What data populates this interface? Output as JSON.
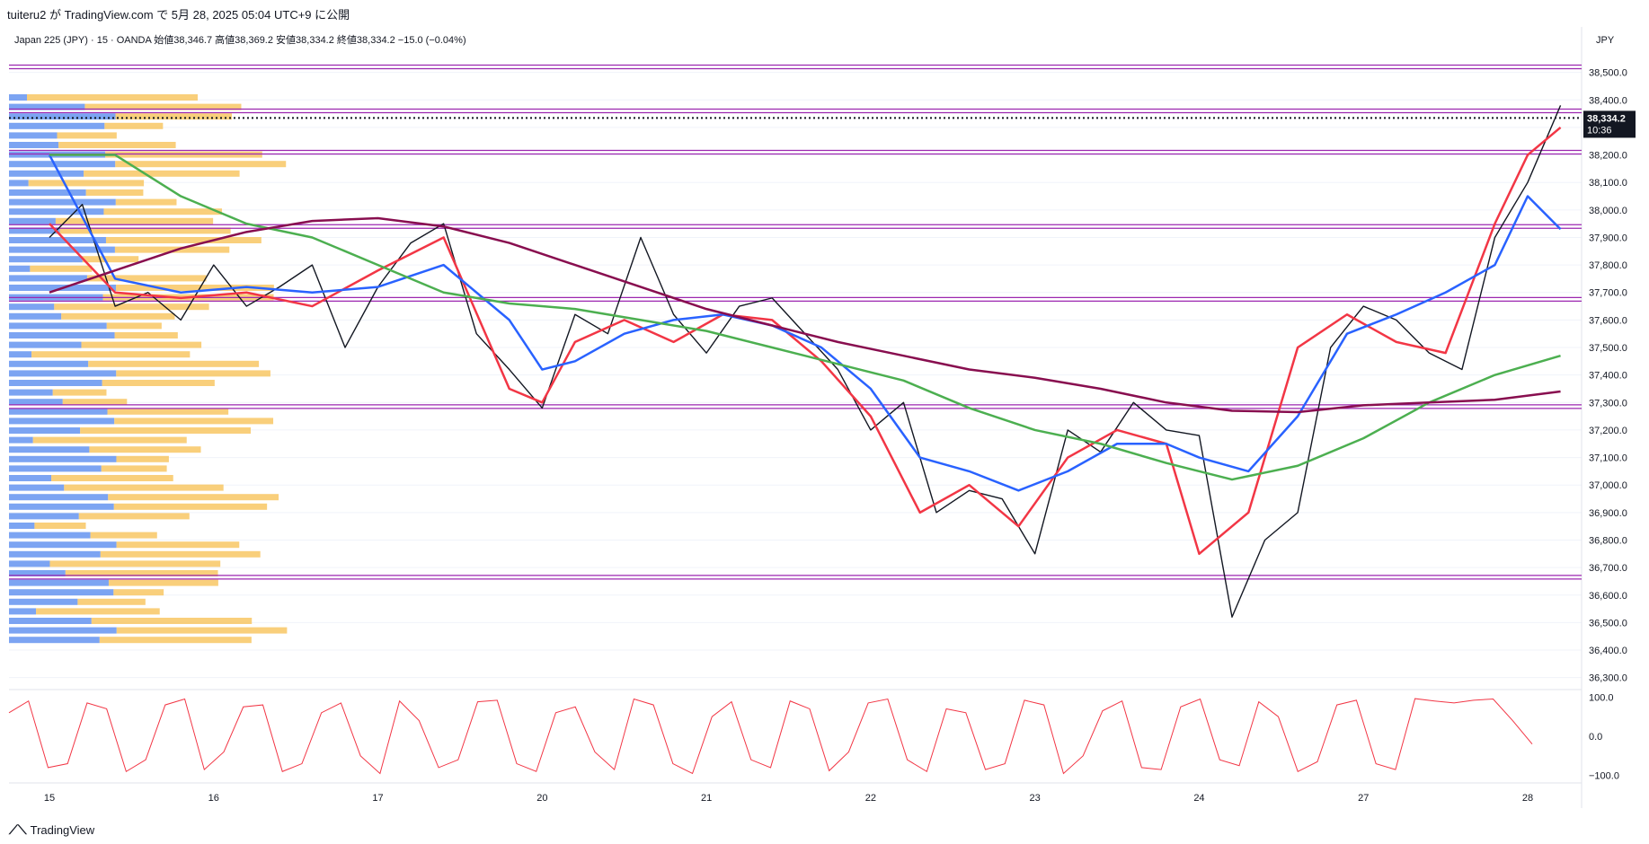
{
  "header": {
    "publish_line": "tuiteru2 が TradingView.com で 5月 28, 2025 05:04 UTC+9 に公開"
  },
  "symbol": {
    "line": "Japan 225 (JPY) · 15 · OANDA  始値38,346.7  高値38,369.2  安値38,334.2  終値38,334.2  −15.0 (−0.04%)"
  },
  "footer": {
    "brand": "TradingView",
    "logo_icon": "tradingview-logo-icon"
  },
  "chart_data": [
    {
      "type": "line",
      "title": "",
      "currency_label": "JPY",
      "y_axis": {
        "min": 36250,
        "max": 38600,
        "ticks": [
          "38,500.0",
          "38,400.0",
          "38,300.0",
          "38,200.0",
          "38,100.0",
          "38,000.0",
          "37,900.0",
          "37,800.0",
          "37,700.0",
          "37,600.0",
          "37,500.0",
          "37,400.0",
          "37,300.0",
          "37,200.0",
          "37,100.0",
          "37,000.0",
          "36,900.0",
          "36,800.0",
          "36,700.0",
          "36,600.0",
          "36,500.0",
          "36,400.0",
          "36,300.0"
        ],
        "tick_values": [
          38500,
          38400,
          38300,
          38200,
          38100,
          38000,
          37900,
          37800,
          37700,
          37600,
          37500,
          37400,
          37300,
          37200,
          37100,
          37000,
          36900,
          36800,
          36700,
          36600,
          36500,
          36400,
          36300
        ]
      },
      "x_axis": {
        "labels": [
          "15",
          "16",
          "17",
          "20",
          "21",
          "22",
          "23",
          "24",
          "27",
          "28"
        ],
        "positions": [
          0,
          1,
          2,
          3,
          4,
          5,
          6,
          7,
          8,
          9
        ]
      },
      "last_price": {
        "label": "38,334.2",
        "countdown": "10:36",
        "value": 38334.2
      },
      "horizontal_levels": [
        38520,
        38360,
        38210,
        37940,
        37675,
        37285,
        36665
      ],
      "series": [
        {
          "color": "#131722",
          "x": [
            0,
            0.2,
            0.4,
            0.6,
            0.8,
            1.0,
            1.2,
            1.4,
            1.6,
            1.8,
            2.0,
            2.2,
            2.4,
            2.6,
            2.8,
            3.0,
            3.2,
            3.4,
            3.6,
            3.8,
            4.0,
            4.2,
            4.4,
            4.6,
            4.8,
            5.0,
            5.2,
            5.4,
            5.6,
            5.8,
            6.0,
            6.2,
            6.4,
            6.6,
            6.8,
            7.0,
            7.2,
            7.4,
            7.6,
            7.8,
            8.0,
            8.2,
            8.4,
            8.6,
            8.8,
            9.0,
            9.2
          ],
          "values": [
            37900,
            38020,
            37650,
            37700,
            37600,
            37800,
            37650,
            37720,
            37800,
            37500,
            37720,
            37880,
            37950,
            37550,
            37420,
            37280,
            37620,
            37550,
            37900,
            37620,
            37480,
            37650,
            37680,
            37550,
            37420,
            37200,
            37300,
            36900,
            36980,
            36950,
            36750,
            37200,
            37120,
            37300,
            37200,
            37180,
            36520,
            36800,
            36900,
            37500,
            37650,
            37600,
            37480,
            37420,
            37900,
            38100,
            38380
          ]
        },
        {
          "color": "#f23645",
          "x": [
            0,
            0.4,
            0.8,
            1.2,
            1.6,
            2.0,
            2.4,
            2.8,
            3.0,
            3.2,
            3.5,
            3.8,
            4.1,
            4.4,
            4.7,
            5.0,
            5.3,
            5.6,
            5.9,
            6.2,
            6.5,
            6.8,
            7.0,
            7.3,
            7.6,
            7.9,
            8.2,
            8.5,
            8.8,
            9.0,
            9.2
          ],
          "values": [
            37950,
            37700,
            37680,
            37700,
            37650,
            37780,
            37900,
            37350,
            37300,
            37520,
            37600,
            37520,
            37620,
            37600,
            37450,
            37250,
            36900,
            37000,
            36850,
            37100,
            37200,
            37150,
            36750,
            36900,
            37500,
            37620,
            37520,
            37480,
            37950,
            38200,
            38300
          ]
        },
        {
          "color": "#2962ff",
          "x": [
            0,
            0.4,
            0.8,
            1.2,
            1.6,
            2.0,
            2.4,
            2.8,
            3.0,
            3.2,
            3.5,
            3.8,
            4.1,
            4.4,
            4.7,
            5.0,
            5.3,
            5.6,
            5.9,
            6.2,
            6.5,
            6.8,
            7.0,
            7.3,
            7.6,
            7.9,
            8.2,
            8.5,
            8.8,
            9.0,
            9.2
          ],
          "values": [
            38200,
            37750,
            37700,
            37720,
            37700,
            37720,
            37800,
            37600,
            37420,
            37450,
            37550,
            37600,
            37620,
            37580,
            37500,
            37350,
            37100,
            37050,
            36980,
            37050,
            37150,
            37150,
            37100,
            37050,
            37250,
            37550,
            37620,
            37700,
            37800,
            38050,
            37930
          ]
        },
        {
          "color": "#4caf50",
          "x": [
            0,
            0.4,
            0.8,
            1.2,
            1.6,
            2.0,
            2.4,
            2.8,
            3.2,
            3.6,
            4.0,
            4.4,
            4.8,
            5.2,
            5.6,
            6.0,
            6.4,
            6.8,
            7.2,
            7.6,
            8.0,
            8.4,
            8.8,
            9.2
          ],
          "values": [
            38200,
            38200,
            38050,
            37950,
            37900,
            37800,
            37700,
            37660,
            37640,
            37600,
            37560,
            37500,
            37440,
            37380,
            37280,
            37200,
            37150,
            37080,
            37020,
            37070,
            37170,
            37300,
            37400,
            37470
          ]
        },
        {
          "color": "#880e4f",
          "x": [
            0,
            0.4,
            0.8,
            1.2,
            1.6,
            2.0,
            2.4,
            2.8,
            3.2,
            3.6,
            4.0,
            4.4,
            4.8,
            5.2,
            5.6,
            6.0,
            6.4,
            6.8,
            7.2,
            7.6,
            8.0,
            8.4,
            8.8,
            9.2
          ],
          "values": [
            37700,
            37780,
            37860,
            37920,
            37960,
            37970,
            37940,
            37880,
            37800,
            37720,
            37640,
            37580,
            37520,
            37470,
            37420,
            37390,
            37350,
            37300,
            37270,
            37265,
            37290,
            37300,
            37310,
            37340
          ]
        }
      ]
    },
    {
      "type": "line",
      "title": "",
      "y_axis": {
        "min": -110,
        "max": 110,
        "ticks": [
          "100.0",
          "0.0",
          "−100.0"
        ],
        "tick_values": [
          100,
          0,
          -100
        ]
      },
      "series": [
        {
          "color": "#f23645",
          "values": [
            60,
            90,
            -80,
            -70,
            85,
            70,
            -90,
            -60,
            80,
            95,
            -85,
            -40,
            75,
            80,
            -90,
            -70,
            60,
            85,
            -50,
            -95,
            90,
            40,
            -80,
            -60,
            88,
            92,
            -70,
            -90,
            60,
            75,
            -40,
            -85,
            95,
            80,
            -70,
            -95,
            50,
            88,
            -60,
            -80,
            90,
            70,
            -88,
            -40,
            85,
            95,
            -60,
            -90,
            70,
            60,
            -85,
            -70,
            92,
            80,
            -95,
            -50,
            65,
            90,
            -80,
            -85,
            75,
            95,
            -60,
            -75,
            88,
            50,
            -90,
            -65,
            80,
            92,
            -70,
            -85,
            96,
            90,
            85,
            92,
            95,
            40,
            -20
          ]
        }
      ]
    }
  ]
}
